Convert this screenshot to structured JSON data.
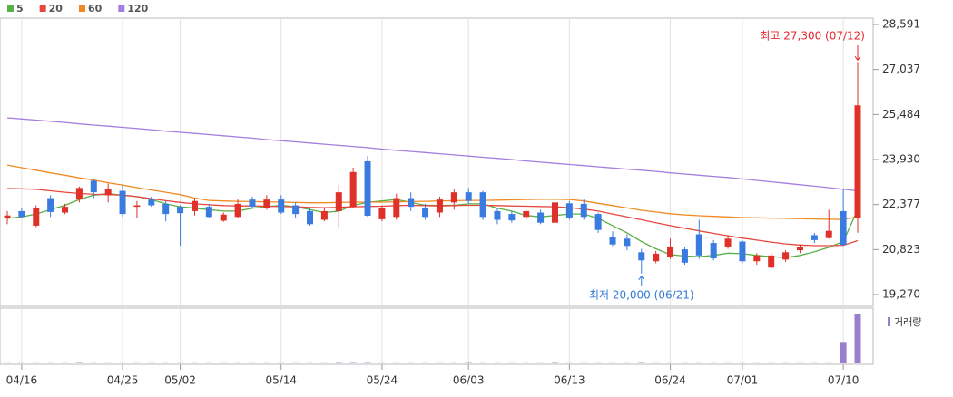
{
  "chart_data": {
    "type": "candlestick",
    "categories": [
      null,
      "04/16",
      null,
      null,
      null,
      null,
      null,
      null,
      "04/25",
      null,
      null,
      null,
      "05/02",
      null,
      null,
      null,
      null,
      null,
      null,
      "05/14",
      null,
      null,
      null,
      null,
      null,
      null,
      "05/24",
      null,
      null,
      null,
      null,
      null,
      "06/03",
      null,
      null,
      null,
      null,
      null,
      null,
      "06/13",
      null,
      null,
      null,
      null,
      null,
      null,
      "06/24",
      null,
      null,
      null,
      null,
      "07/01",
      null,
      null,
      null,
      null,
      null,
      null,
      "07/10",
      null
    ],
    "open": [
      21900,
      22150,
      21650,
      22600,
      22100,
      22550,
      23200,
      22700,
      22850,
      22300,
      22550,
      22400,
      22300,
      22150,
      22300,
      21820,
      21950,
      22550,
      22250,
      22550,
      22350,
      22150,
      21850,
      22150,
      22300,
      23870,
      21870,
      21950,
      22600,
      22250,
      22100,
      22450,
      22800,
      22800,
      22150,
      22050,
      21950,
      22100,
      21750,
      22420,
      22400,
      22050,
      21250,
      21200,
      20730,
      20420,
      20580,
      20830,
      21350,
      21050,
      20930,
      21100,
      20420,
      20200,
      20480,
      20800,
      21320,
      21220,
      22150,
      21900
    ],
    "high": [
      22150,
      22250,
      22350,
      22700,
      22400,
      23000,
      23250,
      23100,
      23050,
      22500,
      22650,
      22500,
      22350,
      22600,
      22400,
      22100,
      22550,
      22650,
      22700,
      22700,
      22450,
      22250,
      22250,
      23050,
      23650,
      24050,
      22350,
      22750,
      22800,
      22400,
      22650,
      22900,
      22950,
      22850,
      22250,
      22150,
      22200,
      22200,
      22550,
      22500,
      22550,
      22100,
      21450,
      21350,
      20850,
      20780,
      21200,
      20900,
      21850,
      21150,
      21300,
      21150,
      20700,
      20700,
      20800,
      21000,
      21400,
      22200,
      22900,
      27300
    ],
    "low": [
      21700,
      21900,
      21600,
      21950,
      22050,
      22450,
      22600,
      22450,
      21950,
      21900,
      22300,
      21800,
      20950,
      22000,
      21900,
      21780,
      21900,
      22250,
      22200,
      22050,
      21900,
      21650,
      21800,
      21600,
      22250,
      21950,
      21800,
      21850,
      22150,
      21850,
      21950,
      22200,
      22400,
      21850,
      21700,
      21750,
      21850,
      21700,
      21700,
      21850,
      21850,
      21400,
      20950,
      20800,
      20000,
      20350,
      20500,
      20300,
      20500,
      20450,
      20850,
      20350,
      20300,
      20150,
      20400,
      20700,
      21050,
      21200,
      20950,
      21400
    ],
    "close": [
      22000,
      21950,
      22250,
      22120,
      22300,
      22950,
      22800,
      22900,
      22050,
      22350,
      22350,
      22050,
      22080,
      22500,
      21950,
      22030,
      22400,
      22300,
      22550,
      22100,
      22050,
      21700,
      22150,
      22800,
      23500,
      21990,
      22250,
      22600,
      22300,
      21950,
      22550,
      22800,
      22500,
      21950,
      21850,
      21830,
      22150,
      21750,
      22450,
      21930,
      21950,
      21500,
      21000,
      20950,
      20450,
      20680,
      20930,
      20370,
      20620,
      20520,
      21200,
      20420,
      20620,
      20620,
      20730,
      20900,
      21150,
      21470,
      20990,
      25800
    ],
    "up_color": "#e0302a",
    "down_color": "#3a7be0",
    "ma_series": [
      {
        "name": "5",
        "color": "#58b046",
        "values": [
          21900,
          21950,
          22050,
          22200,
          22350,
          22550,
          22700,
          22750,
          22700,
          22650,
          22550,
          22400,
          22300,
          22250,
          22200,
          22150,
          22150,
          22250,
          22300,
          22350,
          22300,
          22200,
          22100,
          22150,
          22350,
          22450,
          22500,
          22550,
          22450,
          22350,
          22350,
          22350,
          22400,
          22400,
          22250,
          22150,
          22000,
          21950,
          22000,
          22050,
          22050,
          21900,
          21650,
          21400,
          21100,
          20850,
          20650,
          20600,
          20580,
          20620,
          20700,
          20680,
          20620,
          20580,
          20550,
          20620,
          20750,
          20900,
          21100,
          22200
        ]
      },
      {
        "name": "20",
        "color": "#e8473f",
        "values": [
          22930,
          22920,
          22900,
          22850,
          22800,
          22760,
          22730,
          22720,
          22700,
          22650,
          22580,
          22510,
          22450,
          22400,
          22370,
          22340,
          22330,
          22330,
          22320,
          22310,
          22300,
          22280,
          22270,
          22280,
          22300,
          22310,
          22320,
          22340,
          22350,
          22340,
          22330,
          22340,
          22350,
          22350,
          22340,
          22330,
          22320,
          22310,
          22300,
          22270,
          22220,
          22150,
          22050,
          21950,
          21850,
          21750,
          21650,
          21560,
          21470,
          21380,
          21300,
          21220,
          21150,
          21080,
          21020,
          20980,
          20960,
          20960,
          20970,
          21130
        ]
      },
      {
        "name": "60",
        "color": "#f08a24",
        "values": [
          23740,
          23650,
          23560,
          23470,
          23390,
          23300,
          23220,
          23130,
          23050,
          22960,
          22880,
          22800,
          22720,
          22600,
          22520,
          22500,
          22490,
          22480,
          22470,
          22460,
          22450,
          22440,
          22440,
          22450,
          22460,
          22460,
          22460,
          22470,
          22480,
          22490,
          22500,
          22510,
          22520,
          22520,
          22530,
          22540,
          22550,
          22560,
          22560,
          22550,
          22500,
          22420,
          22340,
          22260,
          22180,
          22120,
          22060,
          22020,
          21990,
          21970,
          21950,
          21930,
          21920,
          21910,
          21900,
          21890,
          21880,
          21870,
          21860,
          21960
        ]
      },
      {
        "name": "120",
        "color": "#a57ee0",
        "values": [
          25370,
          25330,
          25290,
          25250,
          25210,
          25160,
          25120,
          25080,
          25040,
          25000,
          24960,
          24910,
          24870,
          24830,
          24790,
          24750,
          24710,
          24670,
          24620,
          24580,
          24540,
          24500,
          24460,
          24420,
          24380,
          24340,
          24290,
          24250,
          24210,
          24170,
          24130,
          24090,
          24050,
          24010,
          23970,
          23930,
          23880,
          23840,
          23800,
          23760,
          23720,
          23680,
          23640,
          23600,
          23560,
          23520,
          23470,
          23430,
          23390,
          23350,
          23310,
          23260,
          23210,
          23160,
          23110,
          23060,
          23010,
          22960,
          22900,
          22850
        ]
      }
    ],
    "volume": {
      "name": "거래량",
      "color": "#9b7fcf",
      "ylim": [
        0,
        1000
      ],
      "values": [
        3,
        3,
        3,
        3,
        3,
        8,
        3,
        3,
        3,
        3,
        3,
        3,
        3,
        3,
        3,
        3,
        3,
        3,
        3,
        3,
        3,
        3,
        3,
        8,
        8,
        8,
        3,
        3,
        3,
        3,
        3,
        3,
        8,
        3,
        3,
        3,
        3,
        3,
        8,
        3,
        3,
        3,
        3,
        3,
        8,
        3,
        3,
        3,
        3,
        3,
        3,
        3,
        3,
        3,
        3,
        3,
        3,
        3,
        420,
        1000
      ]
    },
    "ylim": [
      19270,
      28591
    ],
    "yticks": [
      {
        "value": 19270,
        "label": "19,270"
      },
      {
        "value": 20823,
        "label": "20,823"
      },
      {
        "value": 22377,
        "label": "22,377"
      },
      {
        "value": 23930,
        "label": "23,930"
      },
      {
        "value": 25484,
        "label": "25,484"
      },
      {
        "value": 27037,
        "label": "27,037"
      },
      {
        "value": 28591,
        "label": "28,591"
      }
    ],
    "annotations": [
      {
        "text": "최고 27,300 (07/12)",
        "color": "#e8262e"
      },
      {
        "text": "최저 20,000 (06/21)",
        "color": "#2f7ad6"
      }
    ]
  }
}
